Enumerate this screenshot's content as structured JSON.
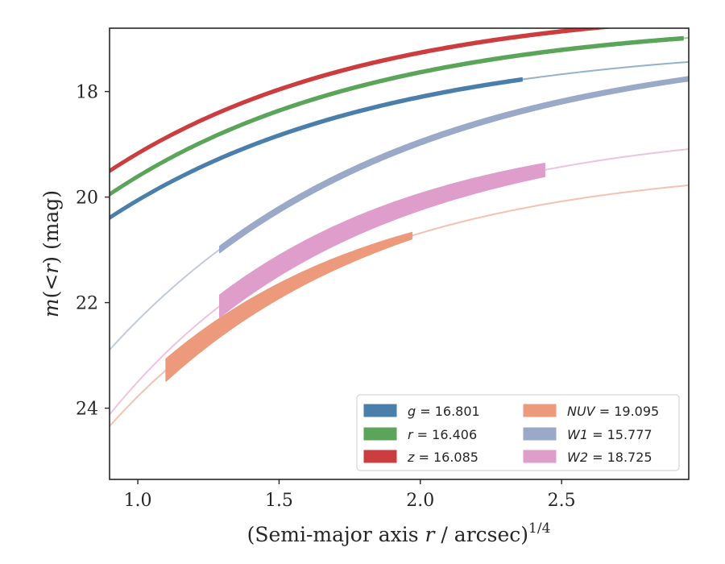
{
  "chart_data": {
    "type": "line",
    "title": "",
    "xlabel_main": "(Semi-major axis ",
    "xlabel_var": "r",
    "xlabel_tail": " / arcsec)",
    "xlabel_sup": "1/4",
    "ylabel_var": "m",
    "ylabel_mid": "(<",
    "ylabel_var2": "r",
    "ylabel_tail": ") (mag)",
    "xlim": [
      0.9,
      2.95
    ],
    "ylim": [
      25.35,
      16.8
    ],
    "y_inverted": true,
    "x_ticks": [
      1.0,
      1.5,
      2.0,
      2.5
    ],
    "x_tick_labels": [
      "1.0",
      "1.5",
      "2.0",
      "2.5"
    ],
    "y_ticks": [
      18,
      20,
      22,
      24
    ],
    "y_tick_labels": [
      "18",
      "20",
      "22",
      "24"
    ],
    "grid": false,
    "legend_placement": "lower-right",
    "series": [
      {
        "name": "g",
        "legend_label": "= 16.801",
        "color": "#4a7eab",
        "model": {
          "m0": 17.05,
          "A": 8.6,
          "k": 1.05
        },
        "data_range": [
          0.9,
          2.36
        ],
        "band": 0.06
      },
      {
        "name": "r",
        "legend_label": "= 16.406",
        "color": "#5ba55a",
        "model": {
          "m0": 16.62,
          "A": 8.8,
          "k": 1.08
        },
        "data_range": [
          0.9,
          2.93
        ],
        "band": 0.06
      },
      {
        "name": "z",
        "legend_label": "= 16.085",
        "color": "#cc3d3f",
        "model": {
          "m0": 16.31,
          "A": 8.6,
          "k": 1.1
        },
        "data_range": [
          0.9,
          2.95
        ],
        "band": 0.06
      },
      {
        "name": "NUV",
        "legend_label": "= 19.095",
        "color": "#ec9a7b",
        "model": {
          "m0": 19.35,
          "A": 14.7,
          "k": 1.2
        },
        "data_range": [
          1.1,
          1.97
        ],
        "band_start": 0.42,
        "band_end": 0.12
      },
      {
        "name": "W1",
        "legend_label": "= 15.777",
        "color": "#9aa9c7",
        "model": {
          "m0": 17.0,
          "A": 14.5,
          "k": 1.0
        },
        "data_range": [
          1.29,
          2.95
        ],
        "band_start": 0.12,
        "band_end": 0.08
      },
      {
        "name": "W2",
        "legend_label": "= 18.725",
        "color": "#df9dcb",
        "model": {
          "m0": 18.62,
          "A": 16.2,
          "k": 1.2
        },
        "data_range": [
          1.29,
          2.44
        ],
        "band_start": 0.42,
        "band_end": 0.25
      }
    ]
  }
}
